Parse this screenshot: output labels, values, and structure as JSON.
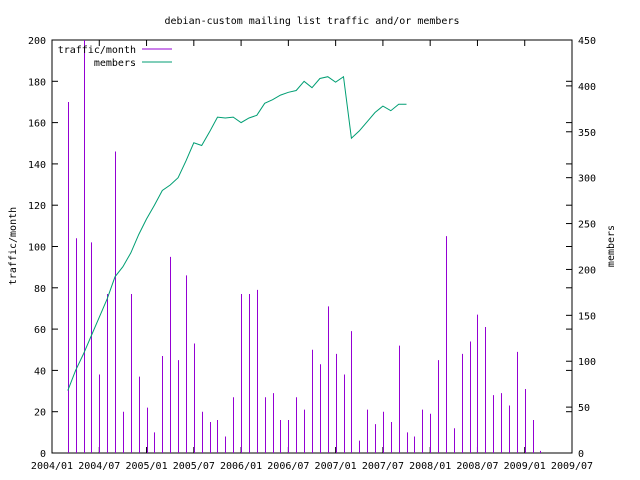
{
  "chart_data": {
    "type": "bar",
    "title": "debian-custom mailing list traffic and/or members",
    "ylabel": "traffic/month",
    "y2label": "members",
    "ylim": [
      0,
      200
    ],
    "y2lim": [
      0,
      450
    ],
    "yticks": [
      0,
      20,
      40,
      60,
      80,
      100,
      120,
      140,
      160,
      180,
      200
    ],
    "y2ticks": [
      0,
      50,
      100,
      150,
      200,
      250,
      300,
      350,
      400,
      450
    ],
    "xlim": [
      "2004-01",
      "2009-07"
    ],
    "xtick_labels": [
      "2004/01",
      "2004/07",
      "2005/01",
      "2005/07",
      "2006/01",
      "2006/07",
      "2007/01",
      "2007/07",
      "2008/01",
      "2008/07",
      "2009/01",
      "2009/07"
    ],
    "legend_position": "top-left",
    "grid": false,
    "colors": {
      "traffic": "#9400d3",
      "members": "#009e73",
      "axis": "#000000"
    },
    "series": [
      {
        "name": "traffic/month",
        "axis": "left",
        "style": "impulses",
        "x": [
          "2004-03",
          "2004-04",
          "2004-05",
          "2004-06",
          "2004-07",
          "2004-08",
          "2004-09",
          "2004-10",
          "2004-11",
          "2004-12",
          "2005-01",
          "2005-02",
          "2005-03",
          "2005-04",
          "2005-05",
          "2005-06",
          "2005-07",
          "2005-08",
          "2005-09",
          "2005-10",
          "2005-11",
          "2005-12",
          "2006-01",
          "2006-02",
          "2006-03",
          "2006-04",
          "2006-05",
          "2006-06",
          "2006-07",
          "2006-08",
          "2006-09",
          "2006-10",
          "2006-11",
          "2006-12",
          "2007-01",
          "2007-02",
          "2007-03",
          "2007-04",
          "2007-05",
          "2007-06",
          "2007-07",
          "2007-08",
          "2007-09",
          "2007-10",
          "2007-11",
          "2007-12",
          "2008-01",
          "2008-02",
          "2008-03",
          "2008-04",
          "2008-05",
          "2008-06",
          "2008-07",
          "2008-08",
          "2008-09",
          "2008-10",
          "2008-11",
          "2008-12",
          "2009-01",
          "2009-02",
          "2009-03"
        ],
        "values": [
          170,
          104,
          200,
          102,
          38,
          77,
          146,
          20,
          77,
          37,
          22,
          10,
          47,
          95,
          45,
          86,
          53,
          20,
          15,
          16,
          8,
          27,
          77,
          77,
          79,
          27,
          29,
          16,
          16,
          27,
          21,
          50,
          43,
          71,
          48,
          38,
          59,
          6,
          21,
          14,
          20,
          15,
          52,
          10,
          8,
          21,
          19,
          45,
          105,
          12,
          48,
          54,
          67,
          61,
          28,
          29,
          23,
          49,
          31,
          16,
          1
        ]
      },
      {
        "name": "members",
        "axis": "right",
        "style": "line",
        "x": [
          "2004-03",
          "2004-04",
          "2004-05",
          "2004-06",
          "2004-07",
          "2004-08",
          "2004-09",
          "2004-10",
          "2004-11",
          "2004-12",
          "2005-01",
          "2005-02",
          "2005-03",
          "2005-04",
          "2005-05",
          "2005-06",
          "2005-07",
          "2005-08",
          "2005-09",
          "2005-10",
          "2005-11",
          "2005-12",
          "2006-01",
          "2006-02",
          "2006-03",
          "2006-04",
          "2006-05",
          "2006-06",
          "2006-07",
          "2006-08",
          "2006-09",
          "2006-10",
          "2006-11",
          "2006-12",
          "2007-01",
          "2007-02",
          "2007-03",
          "2007-04",
          "2007-05",
          "2007-06",
          "2007-07",
          "2007-08",
          "2007-09",
          "2007-10"
        ],
        "values": [
          68,
          90,
          108,
          128,
          148,
          168,
          192,
          203,
          218,
          238,
          255,
          270,
          286,
          292,
          300,
          318,
          338,
          335,
          350,
          366,
          365,
          366,
          360,
          365,
          368,
          381,
          385,
          390,
          393,
          395,
          405,
          398,
          408,
          410,
          404,
          410,
          343,
          351,
          361,
          371,
          378,
          373,
          380,
          380
        ]
      }
    ]
  }
}
